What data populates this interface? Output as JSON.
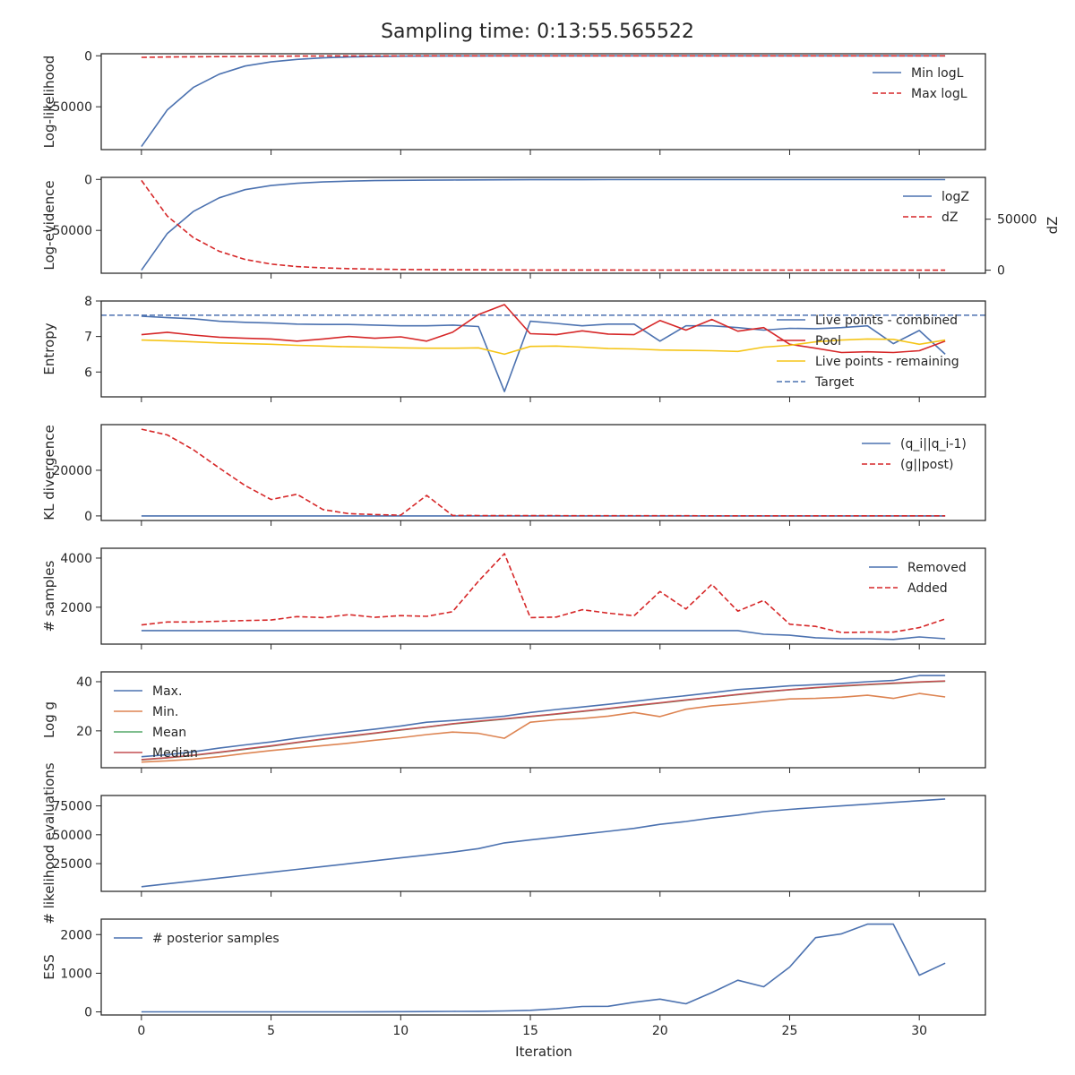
{
  "title": "Sampling time: 0:13:55.565522",
  "x_axis": {
    "label": "Iteration",
    "ticks": [
      0,
      5,
      10,
      15,
      20,
      25,
      30
    ],
    "range": [
      -1.55,
      32.55
    ]
  },
  "colors": {
    "blue": "#4c72b0",
    "red": "#d62728",
    "orange": "#dd8452",
    "green": "#55a868",
    "median": "#c44e52",
    "gold": "#f5c518",
    "text": "#262626"
  },
  "chart_data": [
    {
      "type": "line",
      "ylabel": "Log-likelihood",
      "ylim": [
        -92000,
        2000
      ],
      "yticks": [
        0,
        -50000
      ],
      "legend": "top-right",
      "series": [
        {
          "name": "Min logL",
          "color": "blue",
          "dash": false,
          "values": [
            -89000,
            -53000,
            -31000,
            -18000,
            -10000,
            -6000,
            -3500,
            -2000,
            -1200,
            -700,
            -400,
            -250,
            -150,
            -90,
            -60,
            -40,
            -30,
            -20,
            -15,
            -10,
            -8,
            -6,
            -5,
            -4,
            -3,
            -3,
            -2,
            -2,
            -2,
            -1,
            -1,
            -1
          ]
        },
        {
          "name": "Max logL",
          "color": "red",
          "dash": true,
          "values": [
            -1500,
            -1200,
            -1000,
            -800,
            -600,
            -400,
            -300,
            -200,
            -150,
            -100,
            -80,
            -60,
            -50,
            -40,
            -30,
            -20,
            -15,
            -10,
            -8,
            -6,
            -5,
            -4,
            -3,
            -3,
            -2,
            -2,
            -2,
            -1,
            -1,
            -1,
            -1,
            -1
          ]
        }
      ]
    },
    {
      "type": "line",
      "ylabel": "Log-evidence",
      "ylim": [
        -92000,
        2000
      ],
      "yticks": [
        0,
        -50000
      ],
      "y2label": "dZ",
      "y2lim": [
        -3000,
        91000
      ],
      "y2ticks": [
        0,
        50000
      ],
      "legend": "top-right",
      "series": [
        {
          "name": "logZ",
          "color": "blue",
          "dash": false,
          "axis": "left",
          "values": [
            -89000,
            -53000,
            -31500,
            -18000,
            -10000,
            -6000,
            -3800,
            -2500,
            -1700,
            -1200,
            -900,
            -700,
            -550,
            -450,
            -380,
            -320,
            -280,
            -250,
            -230,
            -210,
            -200,
            -190,
            -185,
            -180,
            -176,
            -173,
            -171,
            -170,
            -169,
            -168,
            -167,
            -166
          ]
        },
        {
          "name": "dZ",
          "color": "red",
          "dash": true,
          "axis": "right",
          "values": [
            88000,
            53000,
            32000,
            18500,
            10500,
            6000,
            3500,
            2300,
            1500,
            1000,
            700,
            500,
            400,
            300,
            250,
            200,
            170,
            150,
            130,
            110,
            100,
            90,
            80,
            70,
            60,
            50,
            40,
            35,
            30,
            25,
            20,
            15
          ]
        }
      ]
    },
    {
      "type": "line",
      "ylabel": "Entropy",
      "ylim": [
        5.3,
        8.0
      ],
      "yticks": [
        6,
        7,
        8
      ],
      "legend": "top-right",
      "hline": {
        "name": "Target",
        "value": 7.6,
        "color": "blue"
      },
      "series": [
        {
          "name": "Live points - combined",
          "color": "blue",
          "dash": false,
          "values": [
            7.57,
            7.53,
            7.5,
            7.43,
            7.4,
            7.38,
            7.35,
            7.34,
            7.34,
            7.32,
            7.3,
            7.3,
            7.32,
            7.28,
            5.45,
            7.43,
            7.37,
            7.3,
            7.35,
            7.35,
            6.87,
            7.3,
            7.3,
            7.25,
            7.18,
            7.23,
            7.22,
            7.25,
            7.3,
            6.8,
            7.17,
            6.5
          ]
        },
        {
          "name": "Pool",
          "color": "red",
          "dash": false,
          "values": [
            7.05,
            7.12,
            7.04,
            6.98,
            6.95,
            6.93,
            6.87,
            6.93,
            7.0,
            6.95,
            6.99,
            6.87,
            7.12,
            7.62,
            7.9,
            7.08,
            7.05,
            7.16,
            7.07,
            7.05,
            7.45,
            7.18,
            7.48,
            7.15,
            7.25,
            6.78,
            6.67,
            6.55,
            6.57,
            6.55,
            6.6,
            6.87
          ]
        },
        {
          "name": "Live points - remaining",
          "color": "gold",
          "dash": false,
          "values": [
            6.9,
            6.88,
            6.85,
            6.82,
            6.8,
            6.78,
            6.75,
            6.73,
            6.71,
            6.7,
            6.68,
            6.67,
            6.67,
            6.68,
            6.5,
            6.72,
            6.73,
            6.7,
            6.66,
            6.65,
            6.62,
            6.61,
            6.6,
            6.58,
            6.7,
            6.75,
            6.85,
            6.9,
            6.93,
            6.92,
            6.78,
            6.9
          ]
        },
        {
          "name": "Target",
          "color": "blue",
          "dash": true,
          "legend_only": true,
          "values": []
        }
      ]
    },
    {
      "type": "line",
      "ylabel": "KL divergence",
      "ylim": [
        -2000,
        40000
      ],
      "yticks": [
        0,
        20000
      ],
      "legend": "top-right",
      "series": [
        {
          "name": "(q_i||q_i-1)",
          "color": "blue",
          "dash": false,
          "values": [
            0,
            0,
            0,
            0,
            0,
            0,
            0,
            0,
            0,
            0,
            0,
            0,
            0,
            0,
            0,
            0,
            0,
            0,
            0,
            0,
            0,
            0,
            0,
            0,
            0,
            0,
            0,
            0,
            0,
            0,
            0,
            0
          ]
        },
        {
          "name": "(g||post)",
          "color": "red",
          "dash": true,
          "values": [
            38000,
            35500,
            29000,
            21000,
            13300,
            7200,
            9500,
            2800,
            1000,
            600,
            300,
            9000,
            200,
            150,
            120,
            100,
            100,
            90,
            80,
            80,
            70,
            70,
            60,
            60,
            60,
            50,
            50,
            50,
            50,
            50,
            50,
            50
          ]
        }
      ]
    },
    {
      "type": "line",
      "ylabel": "# samples",
      "ylim": [
        500,
        4400
      ],
      "yticks": [
        2000,
        4000
      ],
      "legend": "top-right",
      "series": [
        {
          "name": "Removed",
          "color": "blue",
          "dash": false,
          "values": [
            1050,
            1050,
            1050,
            1050,
            1050,
            1050,
            1050,
            1050,
            1050,
            1050,
            1050,
            1050,
            1050,
            1050,
            1050,
            1050,
            1050,
            1050,
            1050,
            1050,
            1050,
            1050,
            1050,
            1050,
            900,
            860,
            760,
            720,
            720,
            690,
            790,
            720
          ]
        },
        {
          "name": "Added",
          "color": "red",
          "dash": true,
          "values": [
            1280,
            1400,
            1400,
            1430,
            1460,
            1480,
            1620,
            1580,
            1700,
            1590,
            1660,
            1630,
            1820,
            3060,
            4180,
            1580,
            1600,
            1900,
            1760,
            1650,
            2640,
            1930,
            2930,
            1840,
            2280,
            1310,
            1220,
            970,
            990,
            990,
            1170,
            1520
          ]
        }
      ]
    },
    {
      "type": "line",
      "ylabel": "Log g",
      "ylim": [
        5,
        44
      ],
      "yticks": [
        20,
        40
      ],
      "legend": "top-left",
      "series": [
        {
          "name": "Max.",
          "color": "blue",
          "dash": false,
          "values": [
            9.5,
            10.3,
            11.5,
            13.0,
            14.3,
            15.5,
            17.0,
            18.3,
            19.5,
            20.7,
            22.0,
            23.5,
            24.2,
            25.0,
            26.0,
            27.5,
            28.7,
            29.7,
            30.8,
            32.0,
            33.2,
            34.3,
            35.5,
            36.8,
            37.5,
            38.3,
            38.8,
            39.3,
            40.0,
            40.5,
            42.5,
            42.5
          ]
        },
        {
          "name": "Min.",
          "color": "orange",
          "dash": false,
          "values": [
            7.3,
            7.8,
            8.5,
            9.5,
            10.8,
            12.0,
            13.0,
            14.0,
            15.0,
            16.2,
            17.2,
            18.5,
            19.5,
            19.0,
            17.0,
            23.5,
            24.5,
            25.0,
            26.0,
            27.5,
            25.8,
            28.8,
            30.2,
            31.0,
            32.0,
            33.0,
            33.2,
            33.7,
            34.5,
            33.2,
            35.2,
            33.8
          ]
        },
        {
          "name": "Mean",
          "color": "green",
          "dash": false,
          "values": [
            8.2,
            9.0,
            10.0,
            11.2,
            12.5,
            13.8,
            15.2,
            16.6,
            17.8,
            19.0,
            20.3,
            21.5,
            22.8,
            23.8,
            24.8,
            25.8,
            26.8,
            27.9,
            29.0,
            30.2,
            31.3,
            32.5,
            33.6,
            34.7,
            35.8,
            36.7,
            37.5,
            38.2,
            38.8,
            39.3,
            39.8,
            40.2
          ]
        },
        {
          "name": "Median",
          "color": "median",
          "dash": false,
          "values": [
            8.3,
            9.1,
            10.1,
            11.3,
            12.6,
            13.9,
            15.3,
            16.7,
            17.9,
            19.1,
            20.4,
            21.6,
            22.9,
            23.9,
            24.9,
            25.9,
            26.9,
            28.0,
            29.1,
            30.3,
            31.4,
            32.6,
            33.7,
            34.8,
            35.9,
            36.8,
            37.6,
            38.3,
            38.9,
            39.4,
            39.9,
            40.3
          ]
        }
      ]
    },
    {
      "type": "line",
      "ylabel": "# likelihood evaluations",
      "ylim": [
        1000,
        84000
      ],
      "yticks": [
        25000,
        50000,
        75000
      ],
      "series": [
        {
          "name": "",
          "color": "blue",
          "dash": false,
          "values": [
            5000,
            7500,
            10000,
            12500,
            15000,
            17500,
            20000,
            22500,
            25000,
            27500,
            30000,
            32500,
            35000,
            38000,
            43000,
            45500,
            48000,
            50500,
            53000,
            55500,
            59000,
            61500,
            64500,
            67000,
            70000,
            72000,
            73500,
            75000,
            76500,
            78000,
            79500,
            81000
          ]
        }
      ]
    },
    {
      "type": "line",
      "ylabel": "ESS",
      "ylim": [
        -80,
        2400
      ],
      "yticks": [
        0,
        1000,
        2000
      ],
      "legend": "top-left",
      "series": [
        {
          "name": "# posterior samples",
          "color": "blue",
          "dash": false,
          "values": [
            0,
            0,
            0,
            0,
            0,
            0,
            0,
            1,
            2,
            3,
            5,
            8,
            12,
            15,
            25,
            40,
            80,
            140,
            145,
            250,
            330,
            210,
            500,
            820,
            650,
            1160,
            1920,
            2020,
            2270,
            2270,
            950,
            1260
          ]
        }
      ]
    }
  ]
}
